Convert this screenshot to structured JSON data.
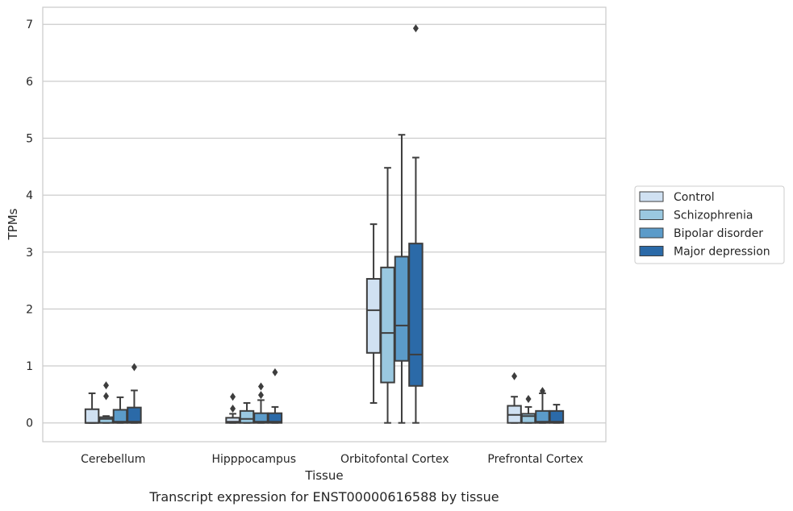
{
  "caption": "Transcript expression for ENST00000616588 by tissue",
  "chart_data": {
    "type": "boxplot",
    "title": "",
    "xlabel": "Tissue",
    "ylabel": "TPMs",
    "ylim": [
      -0.33,
      7.3
    ],
    "yticks": [
      0,
      1,
      2,
      3,
      4,
      5,
      6,
      7
    ],
    "grid": true,
    "legend_position": "right",
    "categories": [
      "Cerebellum",
      "Hipppocampus",
      "Orbitofontal Cortex",
      "Prefrontal Cortex"
    ],
    "series": [
      {
        "name": "Control",
        "color": "#d0e1f2",
        "boxes": [
          {
            "whislo": 0.0,
            "q1": 0.0,
            "med": 0.0,
            "q3": 0.24,
            "whishi": 0.52,
            "fliers": []
          },
          {
            "whislo": 0.0,
            "q1": 0.0,
            "med": 0.02,
            "q3": 0.09,
            "whishi": 0.16,
            "fliers": [
              0.25,
              0.46
            ]
          },
          {
            "whislo": 0.35,
            "q1": 1.23,
            "med": 1.98,
            "q3": 2.53,
            "whishi": 3.49,
            "fliers": []
          },
          {
            "whislo": 0.0,
            "q1": 0.0,
            "med": 0.14,
            "q3": 0.3,
            "whishi": 0.46,
            "fliers": [
              0.82
            ]
          }
        ]
      },
      {
        "name": "Schizophrenia",
        "color": "#9ac8e0",
        "boxes": [
          {
            "whislo": 0.0,
            "q1": 0.0,
            "med": 0.07,
            "q3": 0.1,
            "whishi": 0.12,
            "fliers": [
              0.47,
              0.66
            ]
          },
          {
            "whislo": 0.0,
            "q1": 0.0,
            "med": 0.07,
            "q3": 0.21,
            "whishi": 0.35,
            "fliers": []
          },
          {
            "whislo": 0.0,
            "q1": 0.71,
            "med": 1.58,
            "q3": 2.73,
            "whishi": 4.48,
            "fliers": []
          },
          {
            "whislo": 0.0,
            "q1": 0.0,
            "med": 0.12,
            "q3": 0.16,
            "whishi": 0.28,
            "fliers": [
              0.42
            ]
          }
        ]
      },
      {
        "name": "Bipolar disorder",
        "color": "#5b9bc9",
        "boxes": [
          {
            "whislo": 0.0,
            "q1": 0.0,
            "med": 0.02,
            "q3": 0.23,
            "whishi": 0.45,
            "fliers": []
          },
          {
            "whislo": 0.0,
            "q1": 0.0,
            "med": 0.02,
            "q3": 0.17,
            "whishi": 0.4,
            "fliers": [
              0.49,
              0.64
            ]
          },
          {
            "whislo": 0.0,
            "q1": 1.09,
            "med": 1.71,
            "q3": 2.92,
            "whishi": 5.06,
            "fliers": []
          },
          {
            "whislo": 0.0,
            "q1": 0.0,
            "med": 0.02,
            "q3": 0.21,
            "whishi": 0.52,
            "fliers": [
              0.56
            ]
          }
        ]
      },
      {
        "name": "Major depression",
        "color": "#2b6aa8",
        "boxes": [
          {
            "whislo": 0.0,
            "q1": 0.0,
            "med": 0.02,
            "q3": 0.27,
            "whishi": 0.57,
            "fliers": [
              0.98
            ]
          },
          {
            "whislo": 0.0,
            "q1": 0.0,
            "med": 0.02,
            "q3": 0.17,
            "whishi": 0.28,
            "fliers": [
              0.89
            ]
          },
          {
            "whislo": 0.0,
            "q1": 0.65,
            "med": 1.2,
            "q3": 3.15,
            "whishi": 4.66,
            "fliers": [
              6.93
            ]
          },
          {
            "whislo": 0.0,
            "q1": 0.0,
            "med": 0.02,
            "q3": 0.21,
            "whishi": 0.32,
            "fliers": []
          }
        ]
      }
    ]
  }
}
